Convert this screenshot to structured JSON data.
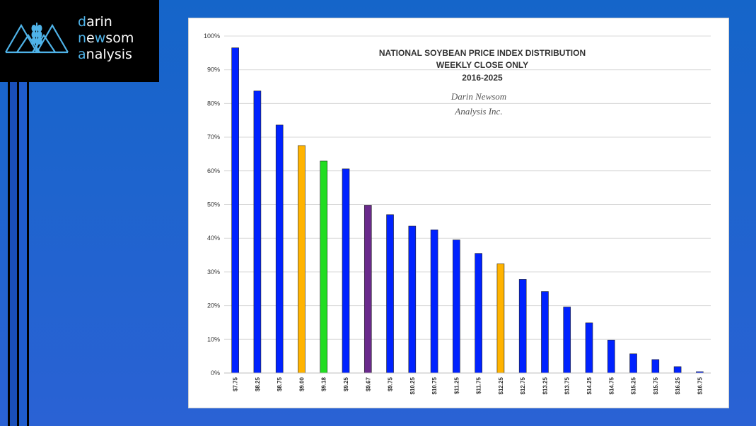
{
  "logo": {
    "line1_accent": "d",
    "line1_rest": "arin",
    "line2_accent": "n",
    "line2_mid": "e",
    "line2_accent2": "w",
    "line2_rest": "som",
    "line3_accent": "a",
    "line3_rest": "nalysis"
  },
  "colors": {
    "background": "#1f66d0",
    "blue_bar": "#0022ff",
    "orange_bar": "#ffb300",
    "green_bar": "#22dd22",
    "purple_bar": "#6a2a8c",
    "logo_accent": "#4fb3e8"
  },
  "chart_data": {
    "type": "bar",
    "title_lines": [
      "NATIONAL SOYBEAN PRICE INDEX DISTRIBUTION",
      "WEEKLY CLOSE ONLY",
      "2016-2025"
    ],
    "watermark_lines": [
      "Darin Newsom",
      "Analysis Inc."
    ],
    "categories": [
      "$7.75",
      "$8.25",
      "$8.75",
      "$9.00",
      "$9.18",
      "$9.25",
      "$9.67",
      "$9.75",
      "$10.25",
      "$10.75",
      "$11.25",
      "$11.75",
      "$12.25",
      "$12.75",
      "$13.25",
      "$13.75",
      "$14.25",
      "$14.75",
      "$15.25",
      "$15.75",
      "$16.25",
      "$16.75"
    ],
    "values": [
      96.5,
      83.7,
      73.6,
      67.5,
      62.9,
      60.6,
      49.8,
      47.0,
      43.6,
      42.5,
      39.5,
      35.5,
      32.4,
      27.8,
      24.2,
      19.6,
      14.9,
      9.8,
      5.7,
      4.0,
      1.9,
      0.4
    ],
    "bar_colors": [
      "blue",
      "blue",
      "blue",
      "orange",
      "green",
      "blue",
      "purple",
      "blue",
      "blue",
      "blue",
      "blue",
      "blue",
      "orange",
      "blue",
      "blue",
      "blue",
      "blue",
      "blue",
      "blue",
      "blue",
      "blue",
      "blue"
    ],
    "ylim": [
      0,
      100
    ],
    "yticks": [
      "0%",
      "10%",
      "20%",
      "30%",
      "40%",
      "50%",
      "60%",
      "70%",
      "80%",
      "90%",
      "100%"
    ],
    "grid": true,
    "legend": "none"
  }
}
